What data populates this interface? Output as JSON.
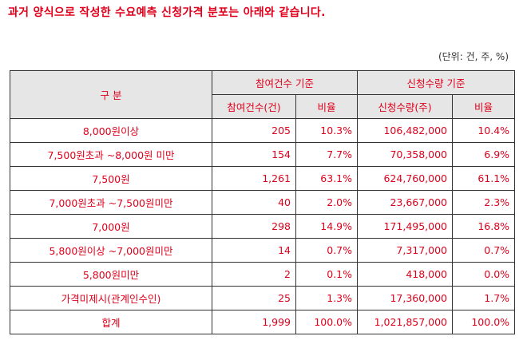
{
  "title": "과거 양식으로 작성한 수요예측 신청가격 분포는 아래와 같습니다.",
  "unit_note": "(단위: 건, 주, %)",
  "table": {
    "header": {
      "category": "구 분",
      "group1": "참여건수 기준",
      "group2": "신청수량 기준",
      "sub1": "참여건수(건)",
      "sub2": "비율",
      "sub3": "신청수량(주)",
      "sub4": "비율"
    },
    "rows": [
      {
        "label": "8,000원이상",
        "count": "205",
        "count_ratio": "10.3%",
        "qty": "106,482,000",
        "qty_ratio": "10.4%"
      },
      {
        "label": "7,500원초과 ~8,000원 미만",
        "count": "154",
        "count_ratio": "7.7%",
        "qty": "70,358,000",
        "qty_ratio": "6.9%"
      },
      {
        "label": "7,500원",
        "count": "1,261",
        "count_ratio": "63.1%",
        "qty": "624,760,000",
        "qty_ratio": "61.1%"
      },
      {
        "label": "7,000원초과 ~7,500원미만",
        "count": "40",
        "count_ratio": "2.0%",
        "qty": "23,667,000",
        "qty_ratio": "2.3%"
      },
      {
        "label": "7,000원",
        "count": "298",
        "count_ratio": "14.9%",
        "qty": "171,495,000",
        "qty_ratio": "16.8%"
      },
      {
        "label": "5,800원이상 ~7,000원미만",
        "count": "14",
        "count_ratio": "0.7%",
        "qty": "7,317,000",
        "qty_ratio": "0.7%"
      },
      {
        "label": "5,800원미만",
        "count": "2",
        "count_ratio": "0.1%",
        "qty": "418,000",
        "qty_ratio": "0.0%"
      },
      {
        "label": "가격미제시(관계인수인)",
        "count": "25",
        "count_ratio": "1.3%",
        "qty": "17,360,000",
        "qty_ratio": "1.7%"
      },
      {
        "label": "합계",
        "count": "1,999",
        "count_ratio": "100.0%",
        "qty": "1,021,857,000",
        "qty_ratio": "100.0%"
      }
    ]
  },
  "colors": {
    "text": "#e0001b",
    "header_bg": "#e6e6e6",
    "border": "#333333"
  }
}
